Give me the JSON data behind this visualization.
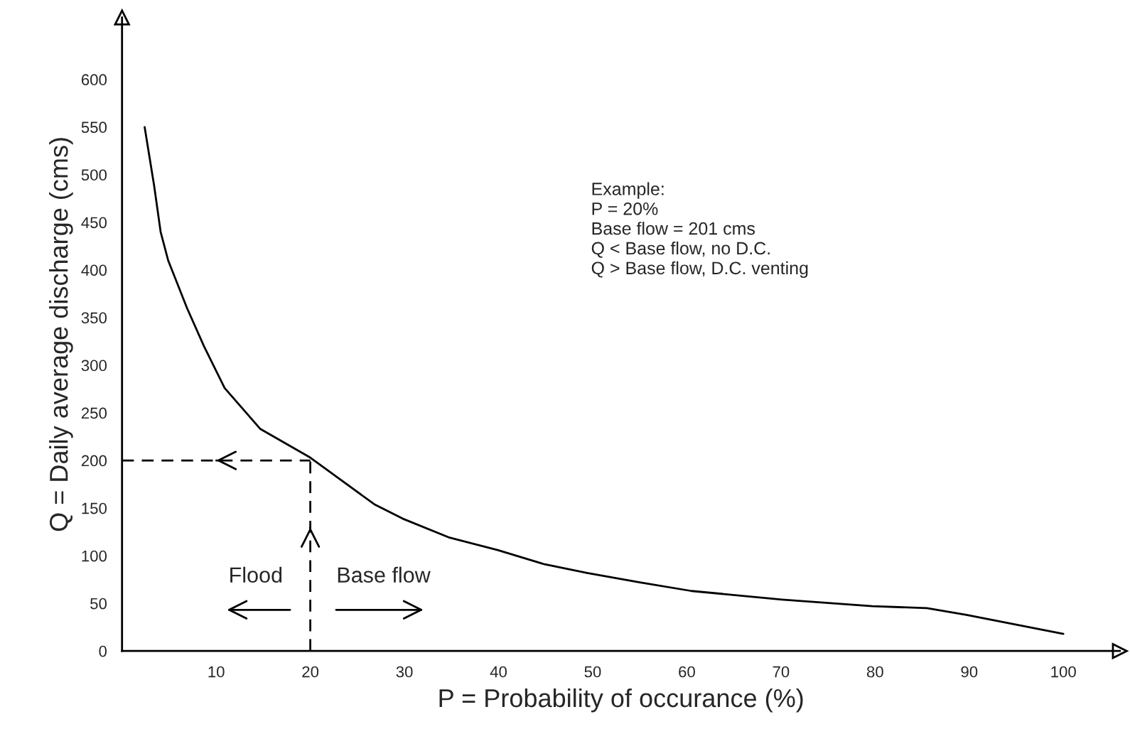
{
  "chart_data": {
    "type": "line",
    "xlabel": "P = Probability of occurance (%)",
    "ylabel": "Q = Daily average discharge (cms)",
    "x": [
      2.4,
      3.4,
      4.1,
      4.9,
      6.9,
      8.7,
      10.9,
      14.7,
      20,
      26.8,
      29.8,
      34.8,
      39.9,
      44.9,
      49.4,
      55,
      60.5,
      70.1,
      79.7,
      85.5,
      89.7,
      94.8,
      100
    ],
    "series": [
      {
        "color": "#000000",
        "values": [
          550,
          489,
          440,
          410,
          360,
          320,
          276,
          233,
          203,
          154,
          139,
          119,
          106,
          91,
          82,
          72,
          63,
          54,
          47,
          45,
          38,
          28,
          18
        ]
      }
    ],
    "xlim": [
      0,
      106
    ],
    "ylim": [
      0,
      665
    ],
    "xticks": [
      10,
      20,
      30,
      40,
      50,
      60,
      70,
      80,
      90,
      100
    ],
    "yticks": [
      0,
      50,
      100,
      150,
      200,
      250,
      300,
      350,
      400,
      450,
      500,
      550,
      600
    ],
    "ref_lines": [
      {
        "axis": "y",
        "value": 200,
        "color": "#000000",
        "line_style": "dashed"
      },
      {
        "axis": "x",
        "value": 20,
        "color": "#000000",
        "line_style": "dashed"
      }
    ],
    "annotations": [
      "Example:\nP = 20%\nBase flow = 201 cms\nQ < Base flow, no D.C.\nQ > Base flow, D.C. venting",
      "Flood",
      "Base flow"
    ],
    "grid": false,
    "marker": "none",
    "line_style": "solid"
  }
}
